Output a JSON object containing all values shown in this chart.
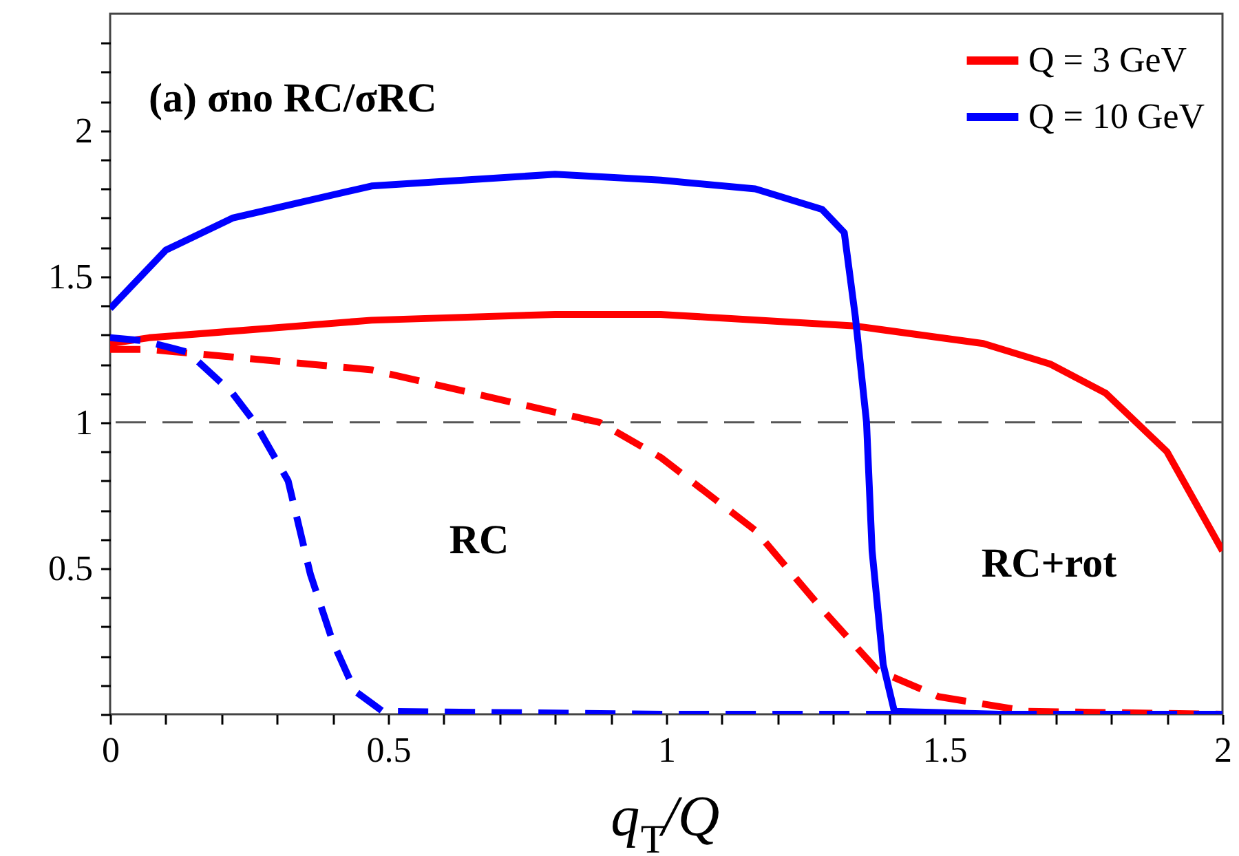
{
  "chart_data": {
    "type": "line",
    "xlabel": "q$_{T}$/Q",
    "annotations": [
      "(a) σno RC/σRC",
      "RC",
      "RC+rot"
    ],
    "series": [
      {
        "name": "Q = 3 GeV",
        "color": "#ff0000",
        "line_style": "solid",
        "x": [
          0,
          0.07,
          0.47,
          0.8,
          0.99,
          1.34,
          1.57,
          1.69,
          1.79,
          1.9,
          2.0
        ],
        "values": [
          1.27,
          1.29,
          1.35,
          1.37,
          1.37,
          1.33,
          1.27,
          1.2,
          1.1,
          0.9,
          0.56
        ]
      },
      {
        "name": "Q = 10 GeV",
        "color": "#0000ff",
        "line_style": "solid",
        "x": [
          0,
          0.1,
          0.22,
          0.47,
          0.8,
          0.99,
          1.16,
          1.28,
          1.32,
          1.34,
          1.36,
          1.37,
          1.39,
          1.41,
          1.6,
          2.0
        ],
        "values": [
          1.39,
          1.59,
          1.7,
          1.81,
          1.85,
          1.83,
          1.8,
          1.73,
          1.65,
          1.36,
          1.0,
          0.56,
          0.17,
          0.01,
          0.0,
          0.0
        ]
      },
      {
        "color": "#ff0000",
        "line_style": "dashed",
        "x": [
          0,
          0.07,
          0.47,
          0.72,
          0.88,
          0.99,
          1.16,
          1.28,
          1.38,
          1.49,
          1.65,
          2.0
        ],
        "values": [
          1.25,
          1.25,
          1.18,
          1.07,
          1.0,
          0.88,
          0.63,
          0.36,
          0.15,
          0.06,
          0.01,
          0.0
        ]
      },
      {
        "color": "#0000ff",
        "line_style": "dashed",
        "x": [
          0,
          0.06,
          0.14,
          0.22,
          0.26,
          0.32,
          0.36,
          0.4,
          0.44,
          0.49,
          1.0,
          2.0
        ],
        "values": [
          1.29,
          1.28,
          1.24,
          1.1,
          1.0,
          0.8,
          0.48,
          0.25,
          0.08,
          0.01,
          0.0,
          0.0
        ]
      }
    ],
    "ref_lines": [
      {
        "axis": "y",
        "value": 1,
        "color": "#555555",
        "line_style": "dashed"
      }
    ],
    "xlim": [
      0,
      2
    ],
    "ylim": [
      0,
      2.4
    ],
    "xticks": [
      0,
      {
        "value": 0.1,
        "label": null
      },
      {
        "value": 0.2,
        "label": null
      },
      {
        "value": 0.3,
        "label": null
      },
      {
        "value": 0.4,
        "label": null
      },
      0.5,
      {
        "value": 0.6,
        "label": null
      },
      {
        "value": 0.7,
        "label": null
      },
      {
        "value": 0.8,
        "label": null
      },
      {
        "value": 0.9,
        "label": null
      },
      1,
      {
        "value": 1.1,
        "label": null
      },
      {
        "value": 1.2,
        "label": null
      },
      {
        "value": 1.3,
        "label": null
      },
      {
        "value": 1.4,
        "label": null
      },
      1.5,
      {
        "value": 1.6,
        "label": null
      },
      {
        "value": 1.7,
        "label": null
      },
      {
        "value": 1.8,
        "label": null
      },
      {
        "value": 1.9,
        "label": null
      },
      2
    ],
    "yticks": [
      {
        "value": 0,
        "label": null
      },
      {
        "value": 0.1,
        "label": null
      },
      {
        "value": 0.2,
        "label": null
      },
      {
        "value": 0.3,
        "label": null
      },
      {
        "value": 0.4,
        "label": null
      },
      0.5,
      {
        "value": 0.6,
        "label": null
      },
      {
        "value": 0.7,
        "label": null
      },
      {
        "value": 0.8,
        "label": null
      },
      {
        "value": 0.9,
        "label": null
      },
      1,
      {
        "value": 1.1,
        "label": null
      },
      {
        "value": 1.2,
        "label": null
      },
      {
        "value": 1.3,
        "label": null
      },
      {
        "value": 1.4,
        "label": null
      },
      1.5,
      {
        "value": 1.6,
        "label": null
      },
      {
        "value": 1.7,
        "label": null
      },
      {
        "value": 1.8,
        "label": null
      },
      {
        "value": 1.9,
        "label": null
      },
      2,
      {
        "value": 2.1,
        "label": null
      },
      {
        "value": 2.2,
        "label": null
      },
      {
        "value": 2.3,
        "label": null
      }
    ],
    "grid": false,
    "legend": "top right",
    "marker": "none"
  }
}
